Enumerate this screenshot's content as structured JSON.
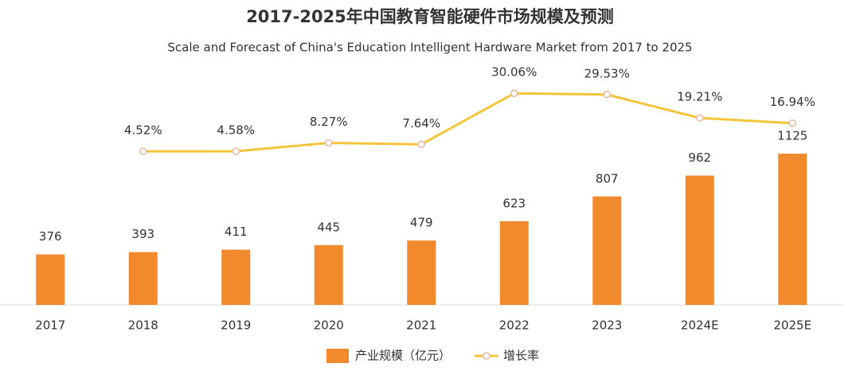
{
  "chart_data": {
    "type": "bar-line",
    "title": "2017-2025年中国教育智能硬件市场规模及预测",
    "subtitle": "Scale and Forecast of China's Education Intelligent Hardware Market from 2017 to 2025",
    "categories": [
      "2017",
      "2018",
      "2019",
      "2020",
      "2021",
      "2022",
      "2023",
      "2024E",
      "2025E"
    ],
    "series": [
      {
        "name": "产业规模（亿元）",
        "type": "bar",
        "color": "#f08a2c",
        "values": [
          376,
          393,
          411,
          445,
          479,
          623,
          807,
          962,
          1125
        ]
      },
      {
        "name": "增长率",
        "type": "line",
        "axis": "y2",
        "color": "#f4c53a",
        "values": [
          null,
          4.52,
          4.58,
          8.27,
          7.64,
          30.06,
          29.53,
          19.21,
          16.94
        ],
        "value_labels": [
          null,
          "4.52%",
          "4.58%",
          "8.27%",
          "7.64%",
          "30.06%",
          "29.53%",
          "19.21%",
          "16.94%"
        ]
      }
    ],
    "ylim": [
      0,
      1700
    ],
    "y2lim": [
      -63,
      37.5
    ]
  }
}
